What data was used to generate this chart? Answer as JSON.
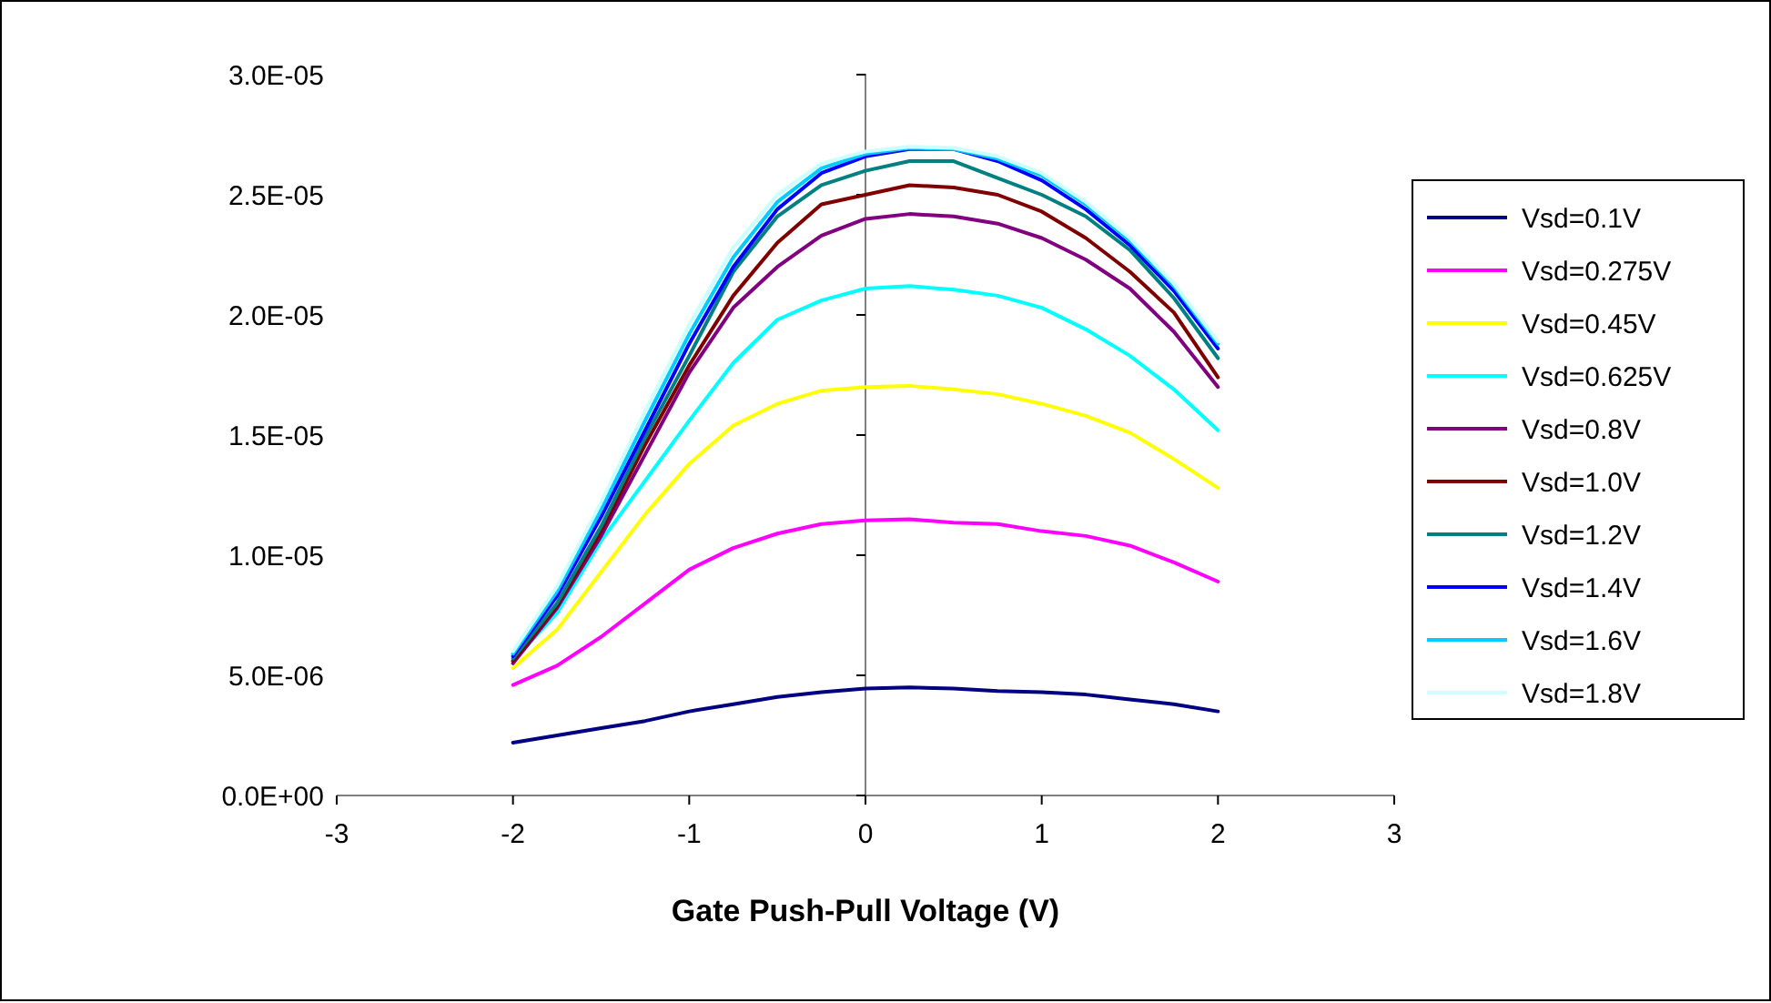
{
  "chart_data": {
    "type": "line",
    "xlabel": "Gate Push-Pull Voltage (V)",
    "x": [
      -2,
      -1.75,
      -1.5,
      -1.25,
      -1,
      -0.75,
      -0.5,
      -0.25,
      0,
      0.25,
      0.5,
      0.75,
      1,
      1.25,
      1.5,
      1.75,
      2
    ],
    "xlim": [
      -3,
      3
    ],
    "xticks": [
      -3,
      -2,
      -1,
      0,
      1,
      2,
      3
    ],
    "ylim": [
      0,
      3e-05
    ],
    "yticks": [
      {
        "value": 0,
        "label": "0.0E+00"
      },
      {
        "value": 5e-06,
        "label": "5.0E-06"
      },
      {
        "value": 1e-05,
        "label": "1.0E-05"
      },
      {
        "value": 1.5e-05,
        "label": "1.5E-05"
      },
      {
        "value": 2e-05,
        "label": "2.0E-05"
      },
      {
        "value": 2.5e-05,
        "label": "2.5E-05"
      },
      {
        "value": 3e-05,
        "label": "3.0E-05"
      }
    ],
    "grid": false,
    "legend": "right",
    "marker": "none",
    "line_style": "solid",
    "series": [
      {
        "name": "Vsd=0.1V",
        "color": "#000080",
        "values": [
          2.2e-06,
          2.5e-06,
          2.8e-06,
          3.1e-06,
          3.5e-06,
          3.8e-06,
          4.1e-06,
          4.3e-06,
          4.45e-06,
          4.5e-06,
          4.45e-06,
          4.35e-06,
          4.3e-06,
          4.2e-06,
          4e-06,
          3.8e-06,
          3.5e-06
        ]
      },
      {
        "name": "Vsd=0.275V",
        "color": "#ff00ff",
        "values": [
          4.6e-06,
          5.4e-06,
          6.6e-06,
          8e-06,
          9.4e-06,
          1.03e-05,
          1.09e-05,
          1.13e-05,
          1.145e-05,
          1.15e-05,
          1.135e-05,
          1.13e-05,
          1.1e-05,
          1.08e-05,
          1.04e-05,
          9.7e-06,
          8.9e-06
        ]
      },
      {
        "name": "Vsd=0.45V",
        "color": "#ffff00",
        "values": [
          5.3e-06,
          6.9e-06,
          9.3e-06,
          1.17e-05,
          1.38e-05,
          1.54e-05,
          1.63e-05,
          1.685e-05,
          1.7e-05,
          1.705e-05,
          1.69e-05,
          1.67e-05,
          1.63e-05,
          1.58e-05,
          1.51e-05,
          1.4e-05,
          1.28e-05
        ]
      },
      {
        "name": "Vsd=0.625V",
        "color": "#00ffff",
        "values": [
          5.6e-06,
          7.6e-06,
          1.06e-05,
          1.31e-05,
          1.56e-05,
          1.8e-05,
          1.98e-05,
          2.06e-05,
          2.11e-05,
          2.12e-05,
          2.105e-05,
          2.08e-05,
          2.03e-05,
          1.94e-05,
          1.83e-05,
          1.69e-05,
          1.52e-05
        ]
      },
      {
        "name": "Vsd=0.8V",
        "color": "#800080",
        "values": [
          5.5e-06,
          7.8e-06,
          1.08e-05,
          1.42e-05,
          1.76e-05,
          2.03e-05,
          2.2e-05,
          2.33e-05,
          2.4e-05,
          2.42e-05,
          2.41e-05,
          2.38e-05,
          2.32e-05,
          2.23e-05,
          2.11e-05,
          1.93e-05,
          1.7e-05
        ]
      },
      {
        "name": "Vsd=1.0V",
        "color": "#800000",
        "values": [
          5.6e-06,
          7.9e-06,
          1.1e-05,
          1.46e-05,
          1.79e-05,
          2.08e-05,
          2.3e-05,
          2.46e-05,
          2.5e-05,
          2.54e-05,
          2.53e-05,
          2.5e-05,
          2.43e-05,
          2.32e-05,
          2.18e-05,
          2.01e-05,
          1.74e-05
        ]
      },
      {
        "name": "Vsd=1.2V",
        "color": "#008080",
        "values": [
          5.7e-06,
          8e-06,
          1.12e-05,
          1.49e-05,
          1.83e-05,
          2.18e-05,
          2.41e-05,
          2.54e-05,
          2.6e-05,
          2.64e-05,
          2.64e-05,
          2.57e-05,
          2.5e-05,
          2.41e-05,
          2.27e-05,
          2.07e-05,
          1.82e-05
        ]
      },
      {
        "name": "Vsd=1.4V",
        "color": "#0000ff",
        "values": [
          5.8e-06,
          8.3e-06,
          1.16e-05,
          1.52e-05,
          1.88e-05,
          2.2e-05,
          2.44e-05,
          2.59e-05,
          2.66e-05,
          2.69e-05,
          2.69e-05,
          2.64e-05,
          2.56e-05,
          2.44e-05,
          2.29e-05,
          2.1e-05,
          1.86e-05
        ]
      },
      {
        "name": "Vsd=1.6V",
        "color": "#00ccff",
        "values": [
          5.9e-06,
          8.5e-06,
          1.19e-05,
          1.56e-05,
          1.92e-05,
          2.24e-05,
          2.47e-05,
          2.61e-05,
          2.67e-05,
          2.695e-05,
          2.69e-05,
          2.65e-05,
          2.58e-05,
          2.46e-05,
          2.31e-05,
          2.12e-05,
          1.88e-05
        ]
      },
      {
        "name": "Vsd=1.8V",
        "color": "#ccffff",
        "values": [
          6e-06,
          8.7e-06,
          1.22e-05,
          1.6e-05,
          1.96e-05,
          2.28e-05,
          2.5e-05,
          2.63e-05,
          2.68e-05,
          2.7e-05,
          2.695e-05,
          2.66e-05,
          2.59e-05,
          2.47e-05,
          2.32e-05,
          2.13e-05,
          1.89e-05
        ]
      }
    ]
  }
}
